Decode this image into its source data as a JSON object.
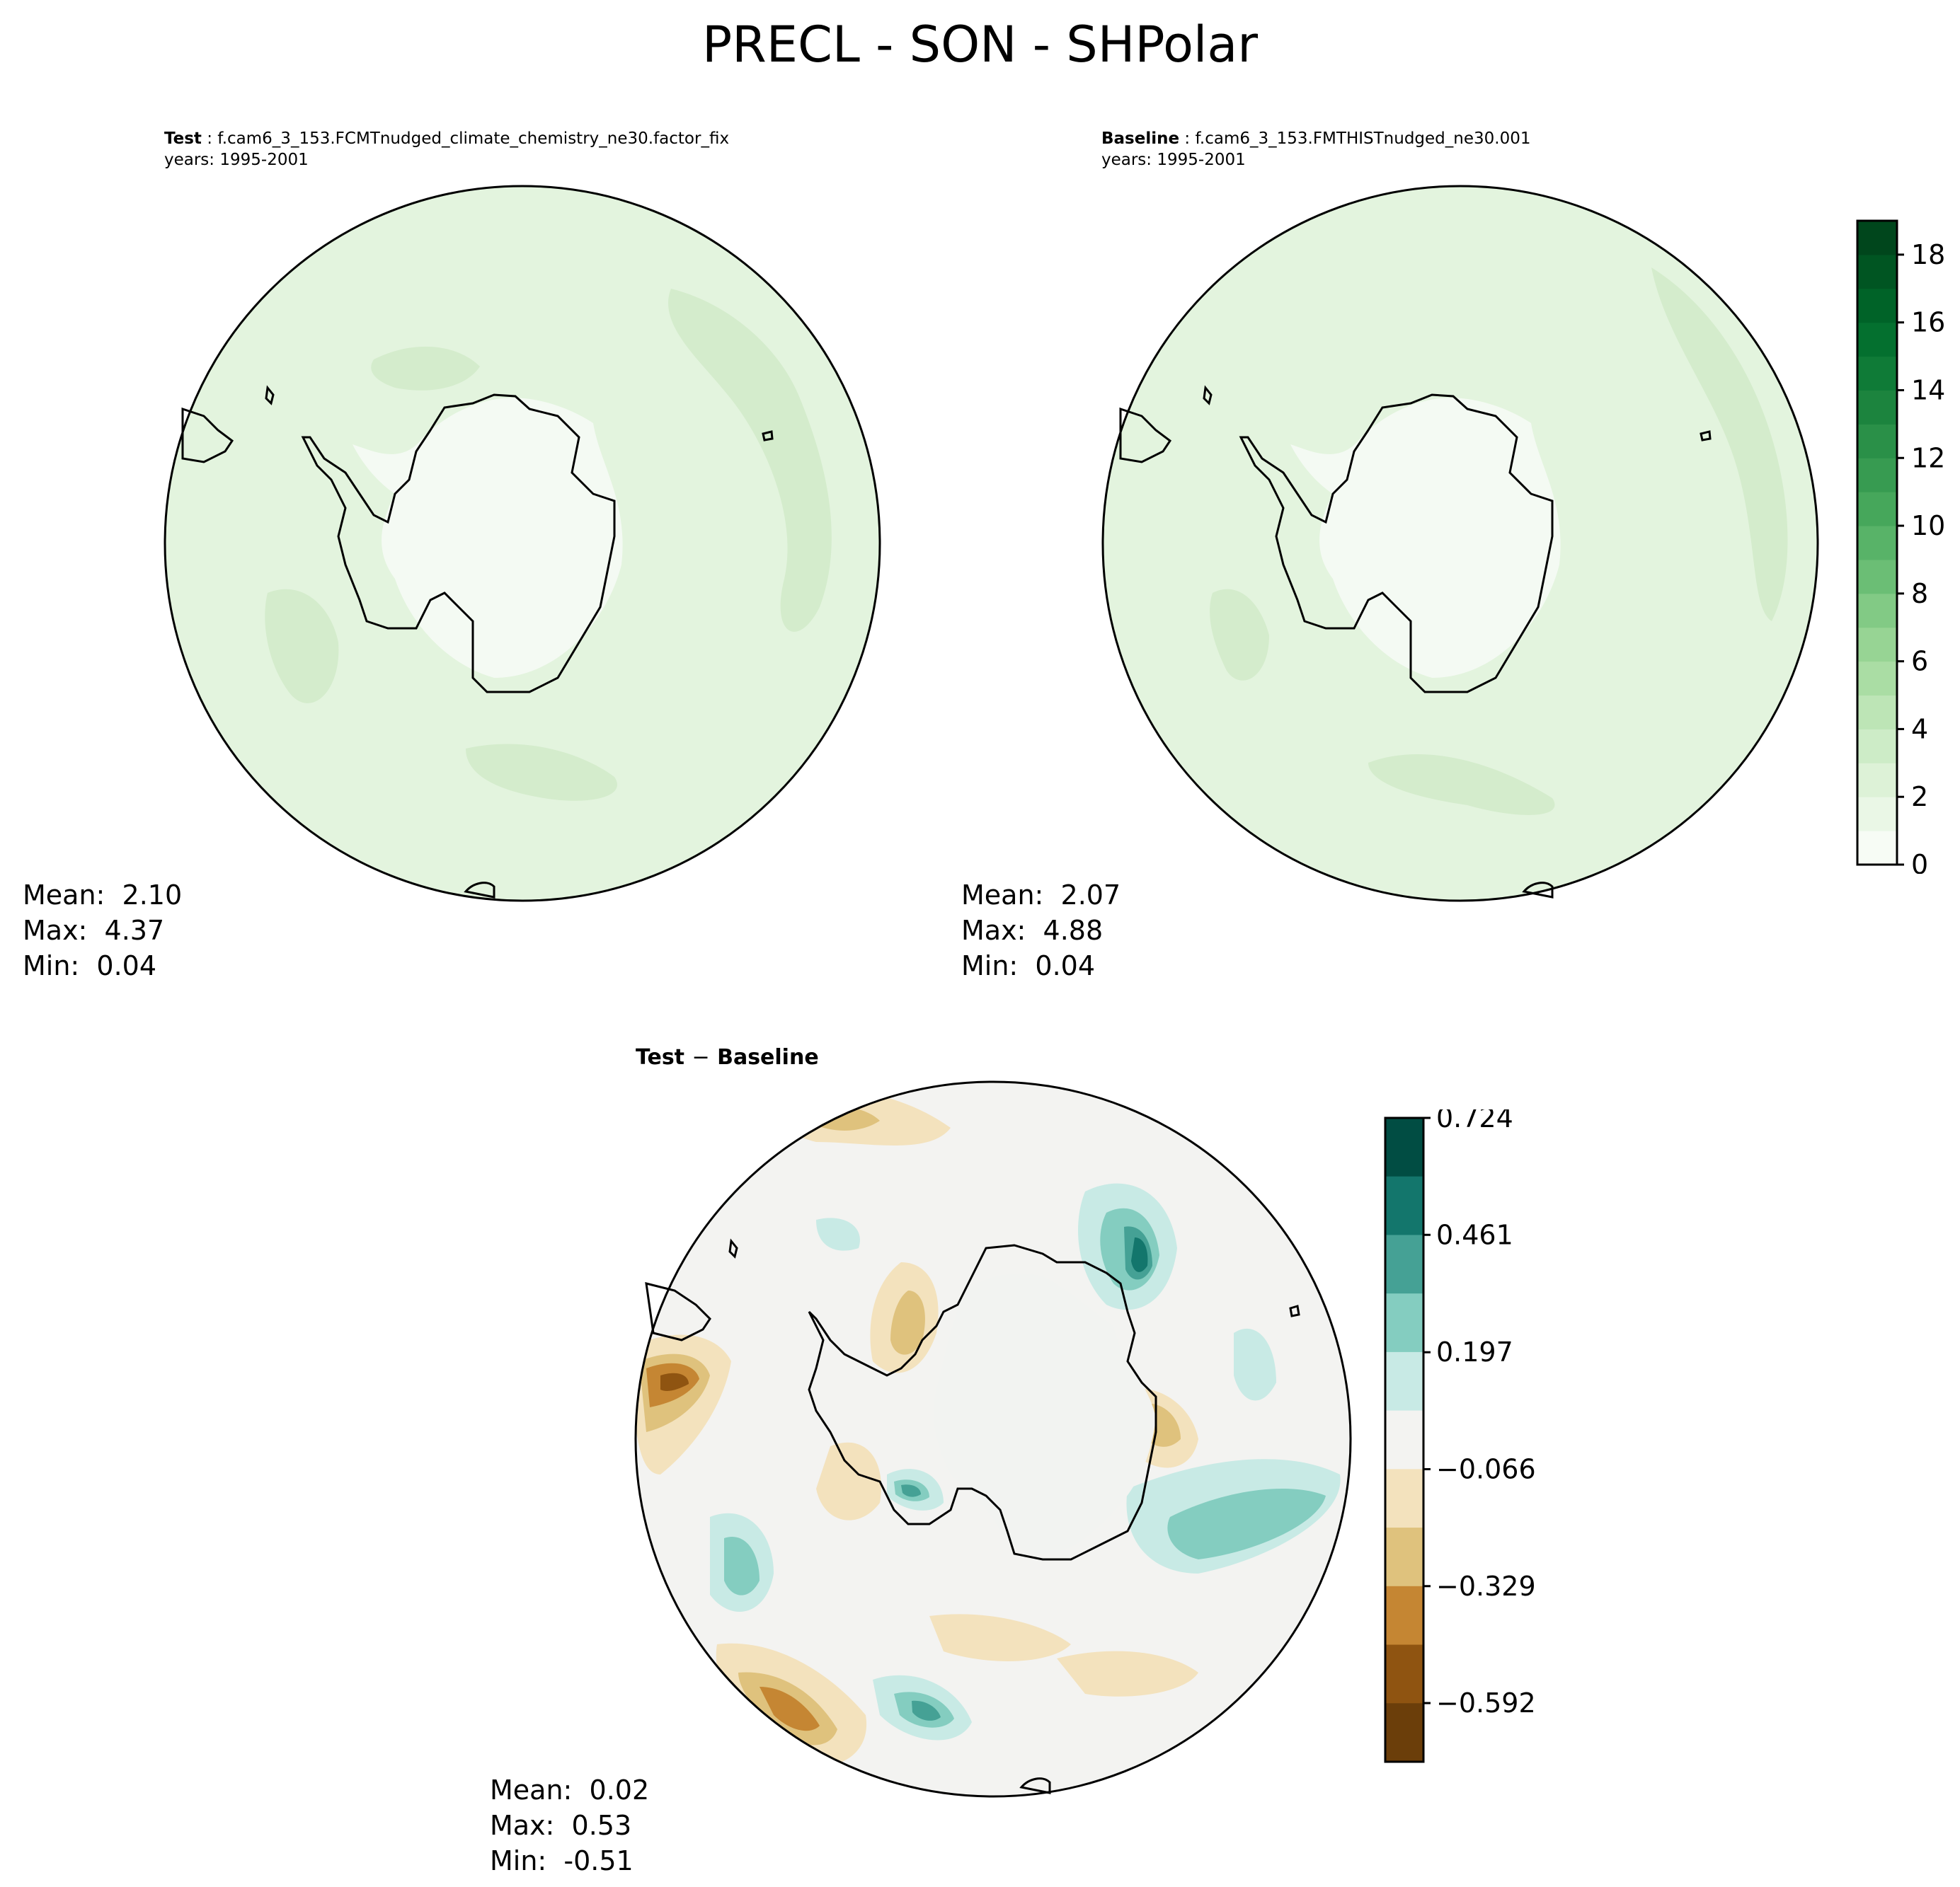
{
  "figure": {
    "title": "PRECL - SON - SHPolar"
  },
  "panels": [
    {
      "id": "test",
      "label": "Test",
      "case": "f.cam6_3_153.FCMTnudged_climate_chemistry_ne30.factor_fix",
      "years": "years: 1995-2001",
      "stats": {
        "mean_label": "Mean:",
        "mean": "2.10",
        "max_label": "Max:",
        "max": "4.37",
        "min_label": "Min:",
        "min": "0.04"
      }
    },
    {
      "id": "baseline",
      "label": "Baseline",
      "case": "f.cam6_3_153.FMTHISTnudged_ne30.001",
      "years": "years: 1995-2001",
      "stats": {
        "mean_label": "Mean:",
        "mean": "2.07",
        "max_label": "Max:",
        "max": "4.88",
        "min_label": "Min:",
        "min": "0.04"
      }
    },
    {
      "id": "diff",
      "title_left": "Test",
      "title_sep": "−",
      "title_right": "Baseline",
      "stats": {
        "mean_label": "Mean:",
        "mean": "0.02",
        "max_label": "Max:",
        "max": "0.53",
        "min_label": "Min:",
        "min": "-0.51"
      }
    }
  ],
  "colorbars": {
    "main": {
      "colormap": "Greens",
      "range": [
        0,
        19
      ],
      "ticks": [
        "0",
        "2",
        "4",
        "6",
        "8",
        "10",
        "12",
        "14",
        "16",
        "18"
      ],
      "tick_values": [
        0,
        2,
        4,
        6,
        8,
        10,
        12,
        14,
        16,
        18
      ],
      "colors": [
        "#f7fcf5",
        "#eaf7e6",
        "#ddf2d7",
        "#cdecc7",
        "#bde5b6",
        "#aadda4",
        "#97d494",
        "#82ca85",
        "#6bbe75",
        "#58b368",
        "#46a75b",
        "#379b51",
        "#2a9048",
        "#1c843e",
        "#0f7b37",
        "#04702f",
        "#006328",
        "#005522",
        "#00461c"
      ]
    },
    "diff": {
      "colormap": "BrBG",
      "range": [
        -0.724,
        0.724
      ],
      "ticks": [
        "0.724",
        "0.461",
        "0.197",
        "−0.066",
        "−0.329",
        "−0.592"
      ],
      "tick_values": [
        0.724,
        0.461,
        0.197,
        -0.066,
        -0.329,
        -0.592
      ],
      "colors": [
        "#6b3e0a",
        "#8f5411",
        "#c58633",
        "#dfc27d",
        "#f3e2bd",
        "#f3f3f1",
        "#c8eae5",
        "#84cdc0",
        "#45a195",
        "#13766c",
        "#014d43"
      ]
    }
  },
  "field_colors": {
    "land_interior": "#f4faf3",
    "land_interior_diff": "#f2f3f1",
    "ocean_light": "#e3f4de",
    "ocean_mid": "#d4eccc",
    "ocean_strong": "#b9e1b1"
  }
}
